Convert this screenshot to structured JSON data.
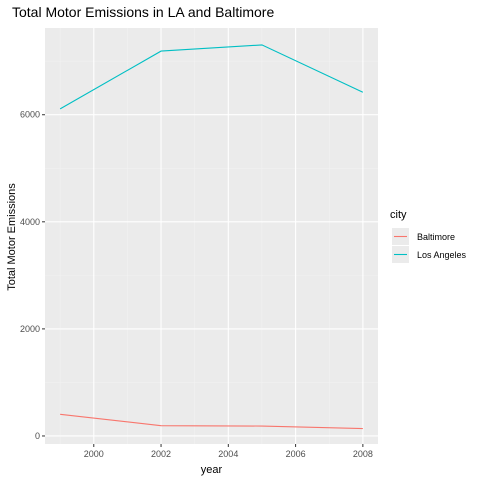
{
  "chart_data": {
    "type": "line",
    "title": "Total Motor Emissions in LA and Baltimore",
    "xlabel": "year",
    "ylabel": "Total Motor Emissions",
    "x": [
      1999,
      2002,
      2005,
      2008
    ],
    "xlim": [
      1998.55,
      2008.45
    ],
    "ylim": [
      -150,
      7620
    ],
    "x_ticks": [
      2000,
      2002,
      2004,
      2006,
      2008
    ],
    "y_ticks": [
      0,
      2000,
      4000,
      6000
    ],
    "x_tick_labels": [
      "2000",
      "2002",
      "2004",
      "2006",
      "2008"
    ],
    "y_tick_labels": [
      "0",
      "2000",
      "4000",
      "6000"
    ],
    "grid": true,
    "legend": {
      "title": "city",
      "position": "right"
    },
    "series": [
      {
        "name": "Baltimore",
        "color": "#F8766D",
        "values": [
          403.8,
          192.0,
          185.4,
          138.2
        ]
      },
      {
        "name": "Los Angeles",
        "color": "#00BFC4",
        "values": [
          6109.7,
          7188.7,
          7304.1,
          6421.0
        ]
      }
    ],
    "colors": {
      "panel": "#EBEBEB",
      "grid_major": "#FFFFFF",
      "grid_minor": "#F3F3F3"
    }
  }
}
